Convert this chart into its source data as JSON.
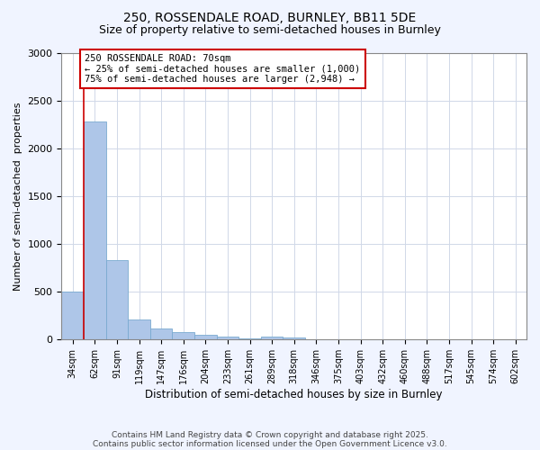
{
  "title1": "250, ROSSENDALE ROAD, BURNLEY, BB11 5DE",
  "title2": "Size of property relative to semi-detached houses in Burnley",
  "xlabel": "Distribution of semi-detached houses by size in Burnley",
  "ylabel": "Number of semi-detached  properties",
  "categories": [
    "34sqm",
    "62sqm",
    "91sqm",
    "119sqm",
    "147sqm",
    "176sqm",
    "204sqm",
    "233sqm",
    "261sqm",
    "289sqm",
    "318sqm",
    "346sqm",
    "375sqm",
    "403sqm",
    "432sqm",
    "460sqm",
    "488sqm",
    "517sqm",
    "545sqm",
    "574sqm",
    "602sqm"
  ],
  "values": [
    500,
    2280,
    830,
    210,
    120,
    80,
    50,
    30,
    15,
    30,
    25,
    0,
    0,
    0,
    0,
    0,
    0,
    0,
    0,
    0,
    0
  ],
  "bar_color": "#aec6e8",
  "bar_edge_color": "#7aaad0",
  "red_line_x": 0.5,
  "annotation_text": "250 ROSSENDALE ROAD: 70sqm\n← 25% of semi-detached houses are smaller (1,000)\n75% of semi-detached houses are larger (2,948) →",
  "ylim": [
    0,
    3000
  ],
  "footnote1": "Contains HM Land Registry data © Crown copyright and database right 2025.",
  "footnote2": "Contains public sector information licensed under the Open Government Licence v3.0.",
  "bg_color": "#f0f4ff",
  "plot_bg_color": "#ffffff",
  "grid_color": "#d0d8e8"
}
